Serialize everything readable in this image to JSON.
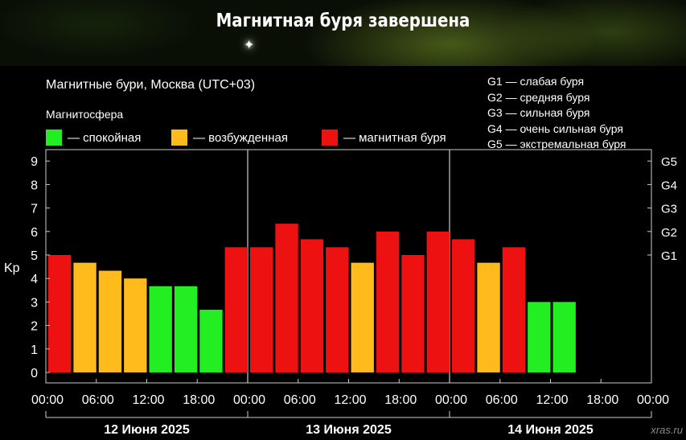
{
  "header": {
    "title": "Магнитная буря завершена"
  },
  "colors": {
    "calm": "#22ee22",
    "excited": "#ffbb1c",
    "storm": "#ee1111",
    "background": "#000000",
    "axis": "#cccccc"
  },
  "watermark": "xras.ru",
  "chart_data": {
    "type": "bar",
    "title": "Магнитные бури, Москва (UTC+03)",
    "ylabel": "Kp",
    "ylim": [
      0,
      9
    ],
    "yticks": [
      0,
      1,
      2,
      3,
      4,
      5,
      6,
      7,
      8,
      9
    ],
    "y2_ticks": [
      {
        "value": 5,
        "label": "G1"
      },
      {
        "value": 6,
        "label": "G2"
      },
      {
        "value": 7,
        "label": "G3"
      },
      {
        "value": 8,
        "label": "G4"
      },
      {
        "value": 9,
        "label": "G5"
      }
    ],
    "x_tick_labels": [
      "00:00",
      "06:00",
      "12:00",
      "18:00",
      "00:00",
      "06:00",
      "12:00",
      "18:00",
      "00:00",
      "06:00",
      "12:00",
      "18:00",
      "00:00"
    ],
    "days": [
      "12 Июня 2025",
      "13 Июня 2025",
      "14 Июня 2025"
    ],
    "interval_hours": 3,
    "bars": [
      {
        "value": 5.0,
        "level": "storm"
      },
      {
        "value": 4.67,
        "level": "excited"
      },
      {
        "value": 4.33,
        "level": "excited"
      },
      {
        "value": 4.0,
        "level": "excited"
      },
      {
        "value": 3.67,
        "level": "calm"
      },
      {
        "value": 3.67,
        "level": "calm"
      },
      {
        "value": 2.67,
        "level": "calm"
      },
      {
        "value": 5.33,
        "level": "storm"
      },
      {
        "value": 5.33,
        "level": "storm"
      },
      {
        "value": 6.33,
        "level": "storm"
      },
      {
        "value": 5.67,
        "level": "storm"
      },
      {
        "value": 5.33,
        "level": "storm"
      },
      {
        "value": 4.67,
        "level": "excited"
      },
      {
        "value": 6.0,
        "level": "storm"
      },
      {
        "value": 5.0,
        "level": "storm"
      },
      {
        "value": 6.0,
        "level": "storm"
      },
      {
        "value": 5.67,
        "level": "storm"
      },
      {
        "value": 4.67,
        "level": "excited"
      },
      {
        "value": 5.33,
        "level": "storm"
      },
      {
        "value": 3.0,
        "level": "calm"
      },
      {
        "value": 3.0,
        "level": "calm"
      }
    ],
    "legend": {
      "heading": "Магнитосфера",
      "items": [
        {
          "key": "calm",
          "label": "— спокойная"
        },
        {
          "key": "excited",
          "label": "— возбужденная"
        },
        {
          "key": "storm",
          "label": "— магнитная буря"
        }
      ]
    },
    "g_scale": [
      "G1 — слабая буря",
      "G2 — средняя буря",
      "G3 — сильная буря",
      "G4 — очень сильная буря",
      "G5 — экстремальная буря"
    ]
  }
}
